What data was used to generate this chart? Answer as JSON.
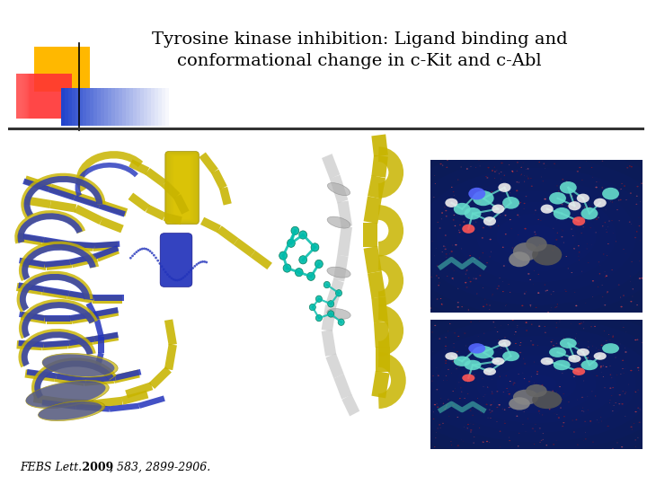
{
  "title": "Tyrosine kinase inhibition: Ligand binding and\nconformational change in c-Kit and c-Abl",
  "citation_italic": "FEBS Lett.",
  "citation_bold": "2009",
  "citation_rest": ", 583, 2899-2906.",
  "bg_color": "#ffffff",
  "title_fontsize": 14,
  "citation_fontsize": 9,
  "logo_yellow": "#FFB800",
  "logo_red": "#FF3333",
  "logo_blue": "#2244CC",
  "line_color": "#333333",
  "img_bg_dark": "#0A1550",
  "img_bg_darker": "#060D35"
}
